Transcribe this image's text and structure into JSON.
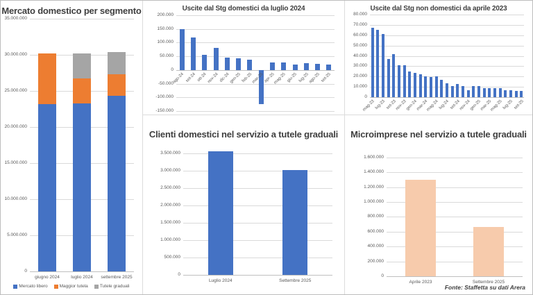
{
  "colors": {
    "blue": "#4472C4",
    "orange": "#ED7D31",
    "gray": "#A5A5A5",
    "peach": "#F7CBAC",
    "grid": "#D9D9D9",
    "title_text": "#3F3F3F",
    "axis_text": "#595959"
  },
  "footer": {
    "source": "Fonte: Staffetta su dati Arera"
  },
  "chart_data": [
    {
      "type": "bar",
      "stacked": true,
      "title": "Mercato domestico per segmento",
      "categories": [
        "giugno 2024",
        "luglio 2024",
        "settembre 2025"
      ],
      "series": [
        {
          "name": "Mercato libero",
          "color_key": "blue",
          "values": [
            23200000,
            23300000,
            24300000
          ]
        },
        {
          "name": "Maggior tutela",
          "color_key": "orange",
          "values": [
            7000000,
            3400000,
            3000000
          ]
        },
        {
          "name": "Tutele graduali",
          "color_key": "gray",
          "values": [
            0,
            3500000,
            3100000
          ]
        }
      ],
      "ylim": [
        0,
        35000000
      ],
      "ytick": 5000000,
      "legend_position": "bottom",
      "grid": true
    },
    {
      "type": "bar",
      "title": "Uscite dal Stg domestici da luglio 2024",
      "categories": [
        "ago-24",
        "set-24",
        "ott-24",
        "nov-24",
        "dic-24",
        "gen-25",
        "feb-25",
        "mar-25",
        "apr-25",
        "mag-25",
        "giu-25",
        "lug-25",
        "ago-25",
        "set-25"
      ],
      "values": [
        150000,
        120000,
        55000,
        80000,
        45000,
        42000,
        38000,
        -125000,
        27000,
        27000,
        20000,
        24000,
        23000,
        21000
      ],
      "ylim": [
        -150000,
        200000
      ],
      "ytick": 50000,
      "grid": true
    },
    {
      "type": "bar",
      "title": "Uscite dal Stg non domestici da aprile 2023",
      "categories": [
        "mag-23",
        "giu-23",
        "lug-23",
        "ago-23",
        "set-23",
        "ott-23",
        "nov-23",
        "dic-23",
        "gen-24",
        "feb-24",
        "mar-24",
        "apr-24",
        "mag-24",
        "giu-24",
        "lug-24",
        "ago-24",
        "set-24",
        "ott-24",
        "nov-24",
        "dic-24",
        "gen-25",
        "feb-25",
        "mar-25",
        "apr-25",
        "mag-25",
        "giu-25",
        "lug-25",
        "ago-25",
        "set-25"
      ],
      "values": [
        67000,
        65000,
        61000,
        37000,
        42000,
        31000,
        31000,
        25000,
        23500,
        22000,
        20500,
        19500,
        20500,
        17000,
        13500,
        10500,
        13000,
        10500,
        6500,
        11000,
        11000,
        8500,
        8500,
        8500,
        8500,
        7000,
        6500,
        6000,
        6000
      ],
      "label_every": 2,
      "ylim": [
        0,
        80000
      ],
      "ytick": 10000,
      "grid": true
    },
    {
      "type": "bar",
      "title": "Clienti domestici nel servizio a tutele graduali",
      "categories": [
        "Luglio 2024",
        "Settembre 2025"
      ],
      "values": [
        3560000,
        3030000
      ],
      "ylim": [
        0,
        3500000
      ],
      "ytick": 500000,
      "grid": true
    },
    {
      "type": "bar",
      "title": "Microimprese nel servizio a tutele graduali",
      "categories": [
        "Aprile 2023",
        "Settembre 2025"
      ],
      "values": [
        1300000,
        660000
      ],
      "ylim": [
        0,
        1600000
      ],
      "ytick": 200000,
      "color_key": "peach",
      "grid": true
    }
  ]
}
